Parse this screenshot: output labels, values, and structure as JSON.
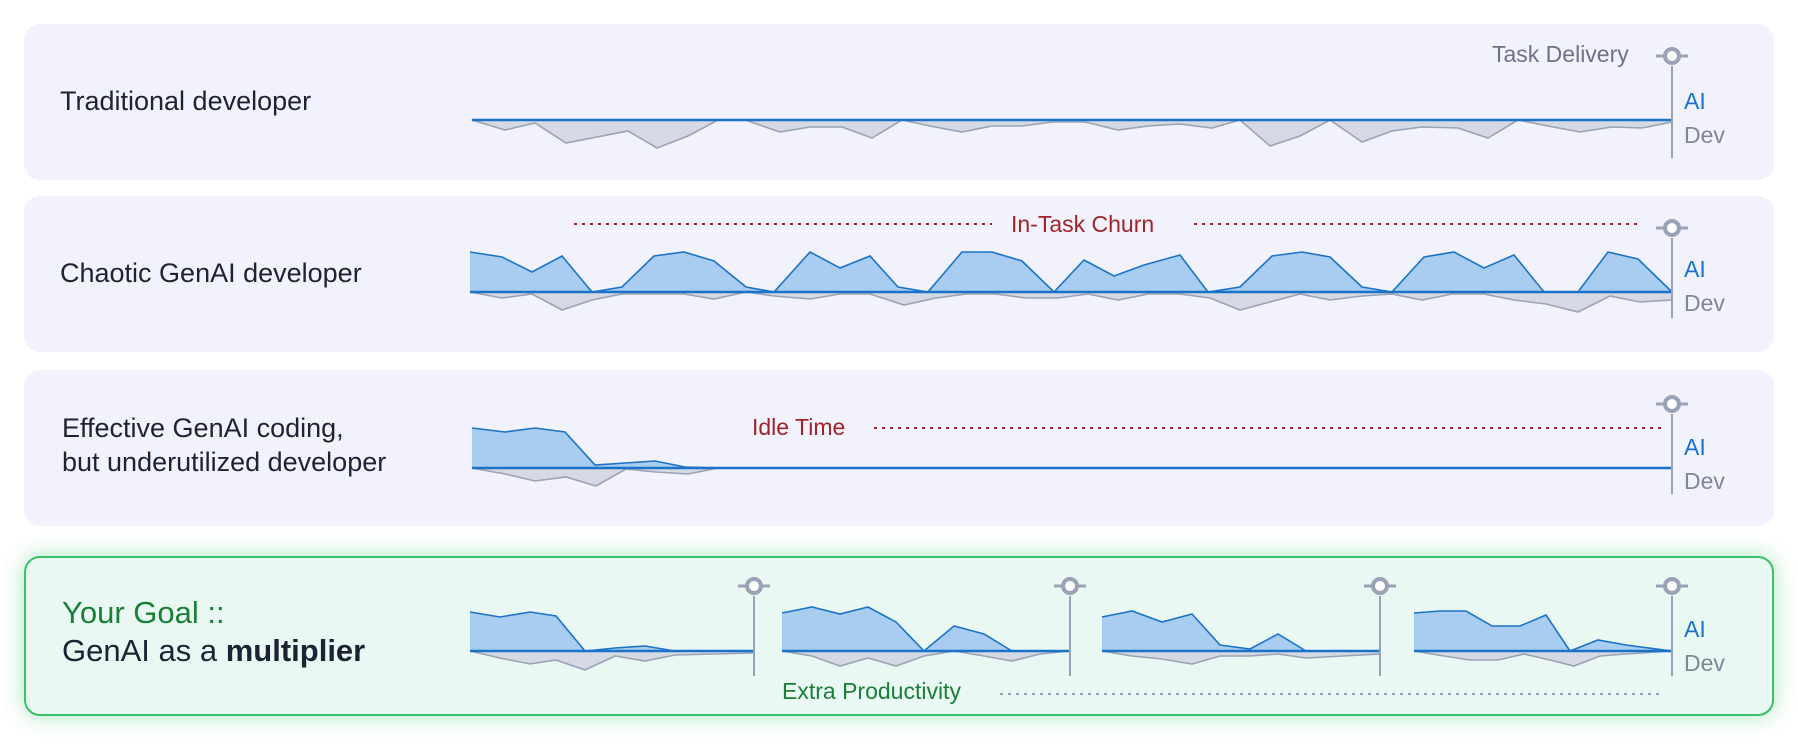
{
  "colors": {
    "ai_fill": "#a8cdf1",
    "ai_stroke": "#1a73c8",
    "dev_fill": "#d5d9e3",
    "dev_stroke": "#9aa3b5",
    "churn_red": "#a1232b",
    "goal_green": "#1a7f37",
    "milestone": "#9aa3b5"
  },
  "rows": [
    {
      "label": "Traditional developer",
      "annotation": "Task Delivery",
      "ai_label": "AI",
      "dev_label": "Dev"
    },
    {
      "label": "Chaotic GenAI developer",
      "annotation": "In-Task Churn",
      "ai_label": "AI",
      "dev_label": "Dev"
    },
    {
      "label_line1": "Effective GenAI coding,",
      "label_line2": "but underutilized developer",
      "annotation": "Idle Time",
      "ai_label": "AI",
      "dev_label": "Dev"
    },
    {
      "label_line1": "Your Goal ::",
      "label_line2_prefix": "GenAI as a ",
      "label_line2_bold": "multiplier",
      "annotation": "Extra Productivity",
      "ai_label": "AI",
      "dev_label": "Dev"
    }
  ]
}
